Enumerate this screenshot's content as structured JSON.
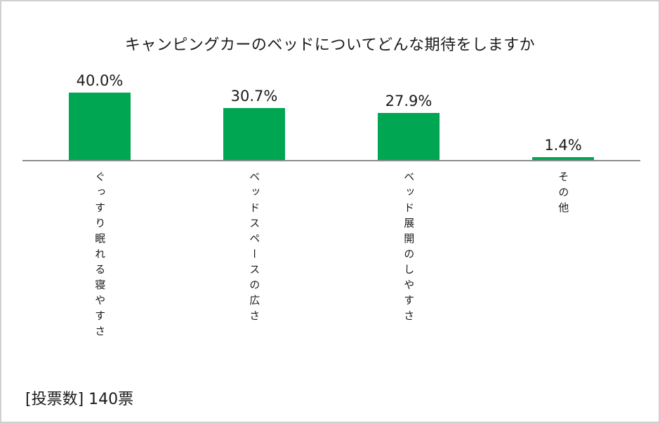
{
  "page": {
    "background_color": "#ffffff",
    "frame_border_color": "#d0d0d0"
  },
  "chart_data": {
    "type": "bar",
    "title": "キャンピングカーのベッドについてどんな期待をしますか",
    "categories": [
      "ぐっすり眠れる寝やすさ",
      "ベッドスペースの広さ",
      "ベッド展開のしやすさ",
      "その他"
    ],
    "values": [
      40.0,
      30.7,
      27.9,
      1.4
    ],
    "value_labels": [
      "40.0%",
      "30.7%",
      "27.9%",
      "1.4%"
    ],
    "unit": "%",
    "bar_color": "#00a651",
    "axis_color": "#8c8c8c",
    "ylim": [
      0,
      45
    ],
    "grid": false,
    "legend": false,
    "category_label_orientation": "vertical",
    "xlabel": "",
    "ylabel": ""
  },
  "footer": {
    "vote_count_label": "[投票数] 140票"
  }
}
